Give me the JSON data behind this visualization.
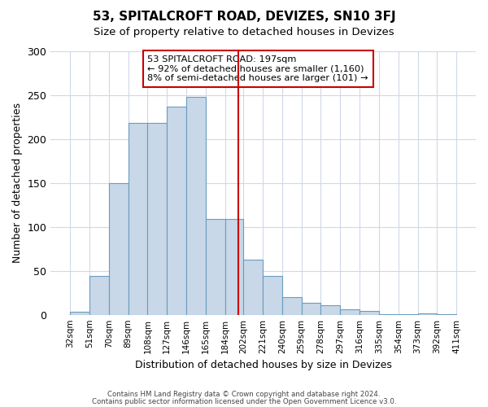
{
  "title": "53, SPITALCROFT ROAD, DEVIZES, SN10 3FJ",
  "subtitle": "Size of property relative to detached houses in Devizes",
  "xlabel": "Distribution of detached houses by size in Devizes",
  "ylabel": "Number of detached properties",
  "bar_color": "#c8d8e8",
  "bar_edge_color": "#6a9cbf",
  "bin_edges": [
    32,
    51,
    70,
    89,
    108,
    127,
    146,
    165,
    184,
    202,
    221,
    240,
    259,
    278,
    297,
    316,
    335,
    354,
    373,
    392,
    411
  ],
  "counts": [
    3,
    44,
    150,
    218,
    218,
    237,
    248,
    109,
    109,
    63,
    44,
    20,
    14,
    11,
    6,
    4,
    1,
    1,
    2,
    1
  ],
  "property_size": 197,
  "vline_color": "#cc0000",
  "annotation_text": "53 SPITALCROFT ROAD: 197sqm\n← 92% of detached houses are smaller (1,160)\n8% of semi-detached houses are larger (101) →",
  "annotation_box_color": "#ffffff",
  "annotation_border_color": "#cc0000",
  "ylim": [
    0,
    300
  ],
  "yticks": [
    0,
    50,
    100,
    150,
    200,
    250,
    300
  ],
  "footer_line1": "Contains HM Land Registry data © Crown copyright and database right 2024.",
  "footer_line2": "Contains public sector information licensed under the Open Government Licence v3.0.",
  "background_color": "#ffffff",
  "grid_color": "#d0d8e8"
}
